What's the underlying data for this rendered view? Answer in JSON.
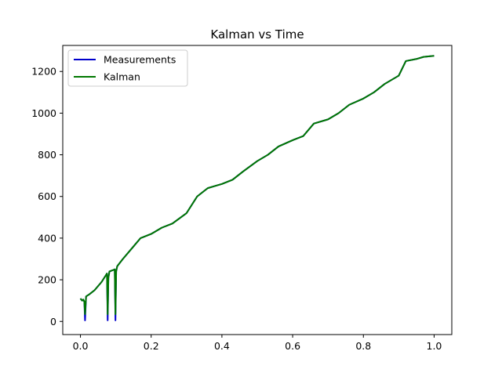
{
  "chart_data": {
    "type": "line",
    "title": "Kalman vs Time",
    "xlabel": "",
    "ylabel": "",
    "xlim": [
      -0.05,
      1.05
    ],
    "ylim": [
      -63,
      1325
    ],
    "x_ticks": [
      0.0,
      0.2,
      0.4,
      0.6,
      0.8,
      1.0
    ],
    "x_tick_labels": [
      "0.0",
      "0.2",
      "0.4",
      "0.6",
      "0.8",
      "1.0"
    ],
    "y_ticks": [
      0,
      200,
      400,
      600,
      800,
      1000,
      1200
    ],
    "y_tick_labels": [
      "0",
      "200",
      "400",
      "600",
      "800",
      "1000",
      "1200"
    ],
    "grid": false,
    "legend_position": "top-left",
    "series": [
      {
        "name": "Measurements",
        "color": "#0000cc",
        "x": [
          0.0,
          0.005,
          0.008,
          0.011,
          0.013,
          0.016,
          0.025,
          0.04,
          0.06,
          0.075,
          0.077,
          0.079,
          0.082,
          0.09,
          0.097,
          0.099,
          0.101,
          0.104,
          0.12,
          0.15,
          0.17,
          0.2,
          0.23,
          0.26,
          0.3,
          0.33,
          0.36,
          0.38,
          0.4,
          0.43,
          0.46,
          0.5,
          0.53,
          0.56,
          0.6,
          0.63,
          0.66,
          0.7,
          0.73,
          0.76,
          0.8,
          0.83,
          0.86,
          0.9,
          0.92,
          0.95,
          0.97,
          1.0
        ],
        "y": [
          110,
          100,
          105,
          95,
          5,
          120,
          130,
          150,
          190,
          230,
          5,
          210,
          240,
          245,
          250,
          5,
          240,
          265,
          300,
          360,
          400,
          420,
          450,
          470,
          520,
          600,
          640,
          650,
          660,
          680,
          720,
          770,
          800,
          840,
          870,
          890,
          950,
          970,
          1000,
          1040,
          1070,
          1100,
          1140,
          1180,
          1250,
          1260,
          1270,
          1275
        ]
      },
      {
        "name": "Kalman",
        "color": "#007700",
        "x": [
          0.0,
          0.005,
          0.008,
          0.011,
          0.013,
          0.016,
          0.025,
          0.04,
          0.06,
          0.075,
          0.077,
          0.079,
          0.082,
          0.09,
          0.097,
          0.099,
          0.101,
          0.104,
          0.12,
          0.15,
          0.17,
          0.2,
          0.23,
          0.26,
          0.3,
          0.33,
          0.36,
          0.38,
          0.4,
          0.43,
          0.46,
          0.5,
          0.53,
          0.56,
          0.6,
          0.63,
          0.66,
          0.7,
          0.73,
          0.76,
          0.8,
          0.83,
          0.86,
          0.9,
          0.92,
          0.95,
          0.97,
          1.0
        ],
        "y": [
          110,
          100,
          105,
          95,
          35,
          120,
          130,
          150,
          190,
          230,
          35,
          210,
          240,
          245,
          250,
          35,
          240,
          265,
          300,
          360,
          400,
          420,
          450,
          470,
          520,
          600,
          640,
          650,
          660,
          680,
          720,
          770,
          800,
          840,
          870,
          890,
          950,
          970,
          1000,
          1040,
          1070,
          1100,
          1140,
          1180,
          1250,
          1260,
          1270,
          1275
        ]
      }
    ]
  }
}
